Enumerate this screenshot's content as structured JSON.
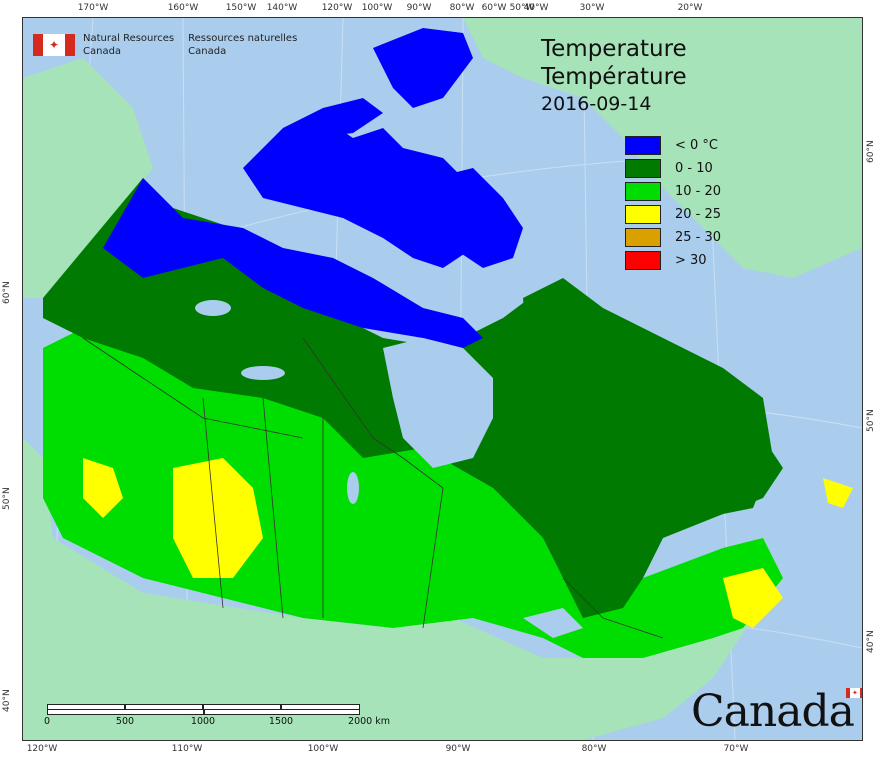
{
  "org": {
    "en_line1": "Natural Resources",
    "en_line2": "Canada",
    "fr_line1": "Ressources naturelles",
    "fr_line2": "Canada"
  },
  "title": {
    "en": "Temperature",
    "fr": "Température",
    "date": "2016-09-14"
  },
  "legend": [
    {
      "label": "< 0 °C",
      "color": "#0000ff"
    },
    {
      "label": "0 - 10",
      "color": "#007a00"
    },
    {
      "label": "10 - 20",
      "color": "#00dd00"
    },
    {
      "label": "20 - 25",
      "color": "#ffff00"
    },
    {
      "label": "25 - 30",
      "color": "#d9a000"
    },
    {
      "label": "> 30",
      "color": "#ff0000"
    }
  ],
  "graticule": {
    "top": [
      "170°W",
      "160°W",
      "150°W",
      "140°W",
      "120°W",
      "100°W",
      "90°W",
      "80°W",
      "60°W",
      "50°W",
      "40°W",
      "30°W",
      "20°W"
    ],
    "bottom": [
      "120°W",
      "110°W",
      "100°W",
      "90°W",
      "80°W",
      "70°W"
    ],
    "left": [
      "60°N",
      "50°N",
      "40°N"
    ],
    "right": [
      "60°N",
      "50°N",
      "40°N"
    ]
  },
  "scale": {
    "ticks": [
      "0",
      "500",
      "1000",
      "1500",
      "2000  km"
    ]
  },
  "wordmark": "Canada",
  "colors": {
    "ocean": "#aacdee",
    "land_other": "#a6e3b9",
    "lake": "#aacdee",
    "border": "#333333"
  }
}
